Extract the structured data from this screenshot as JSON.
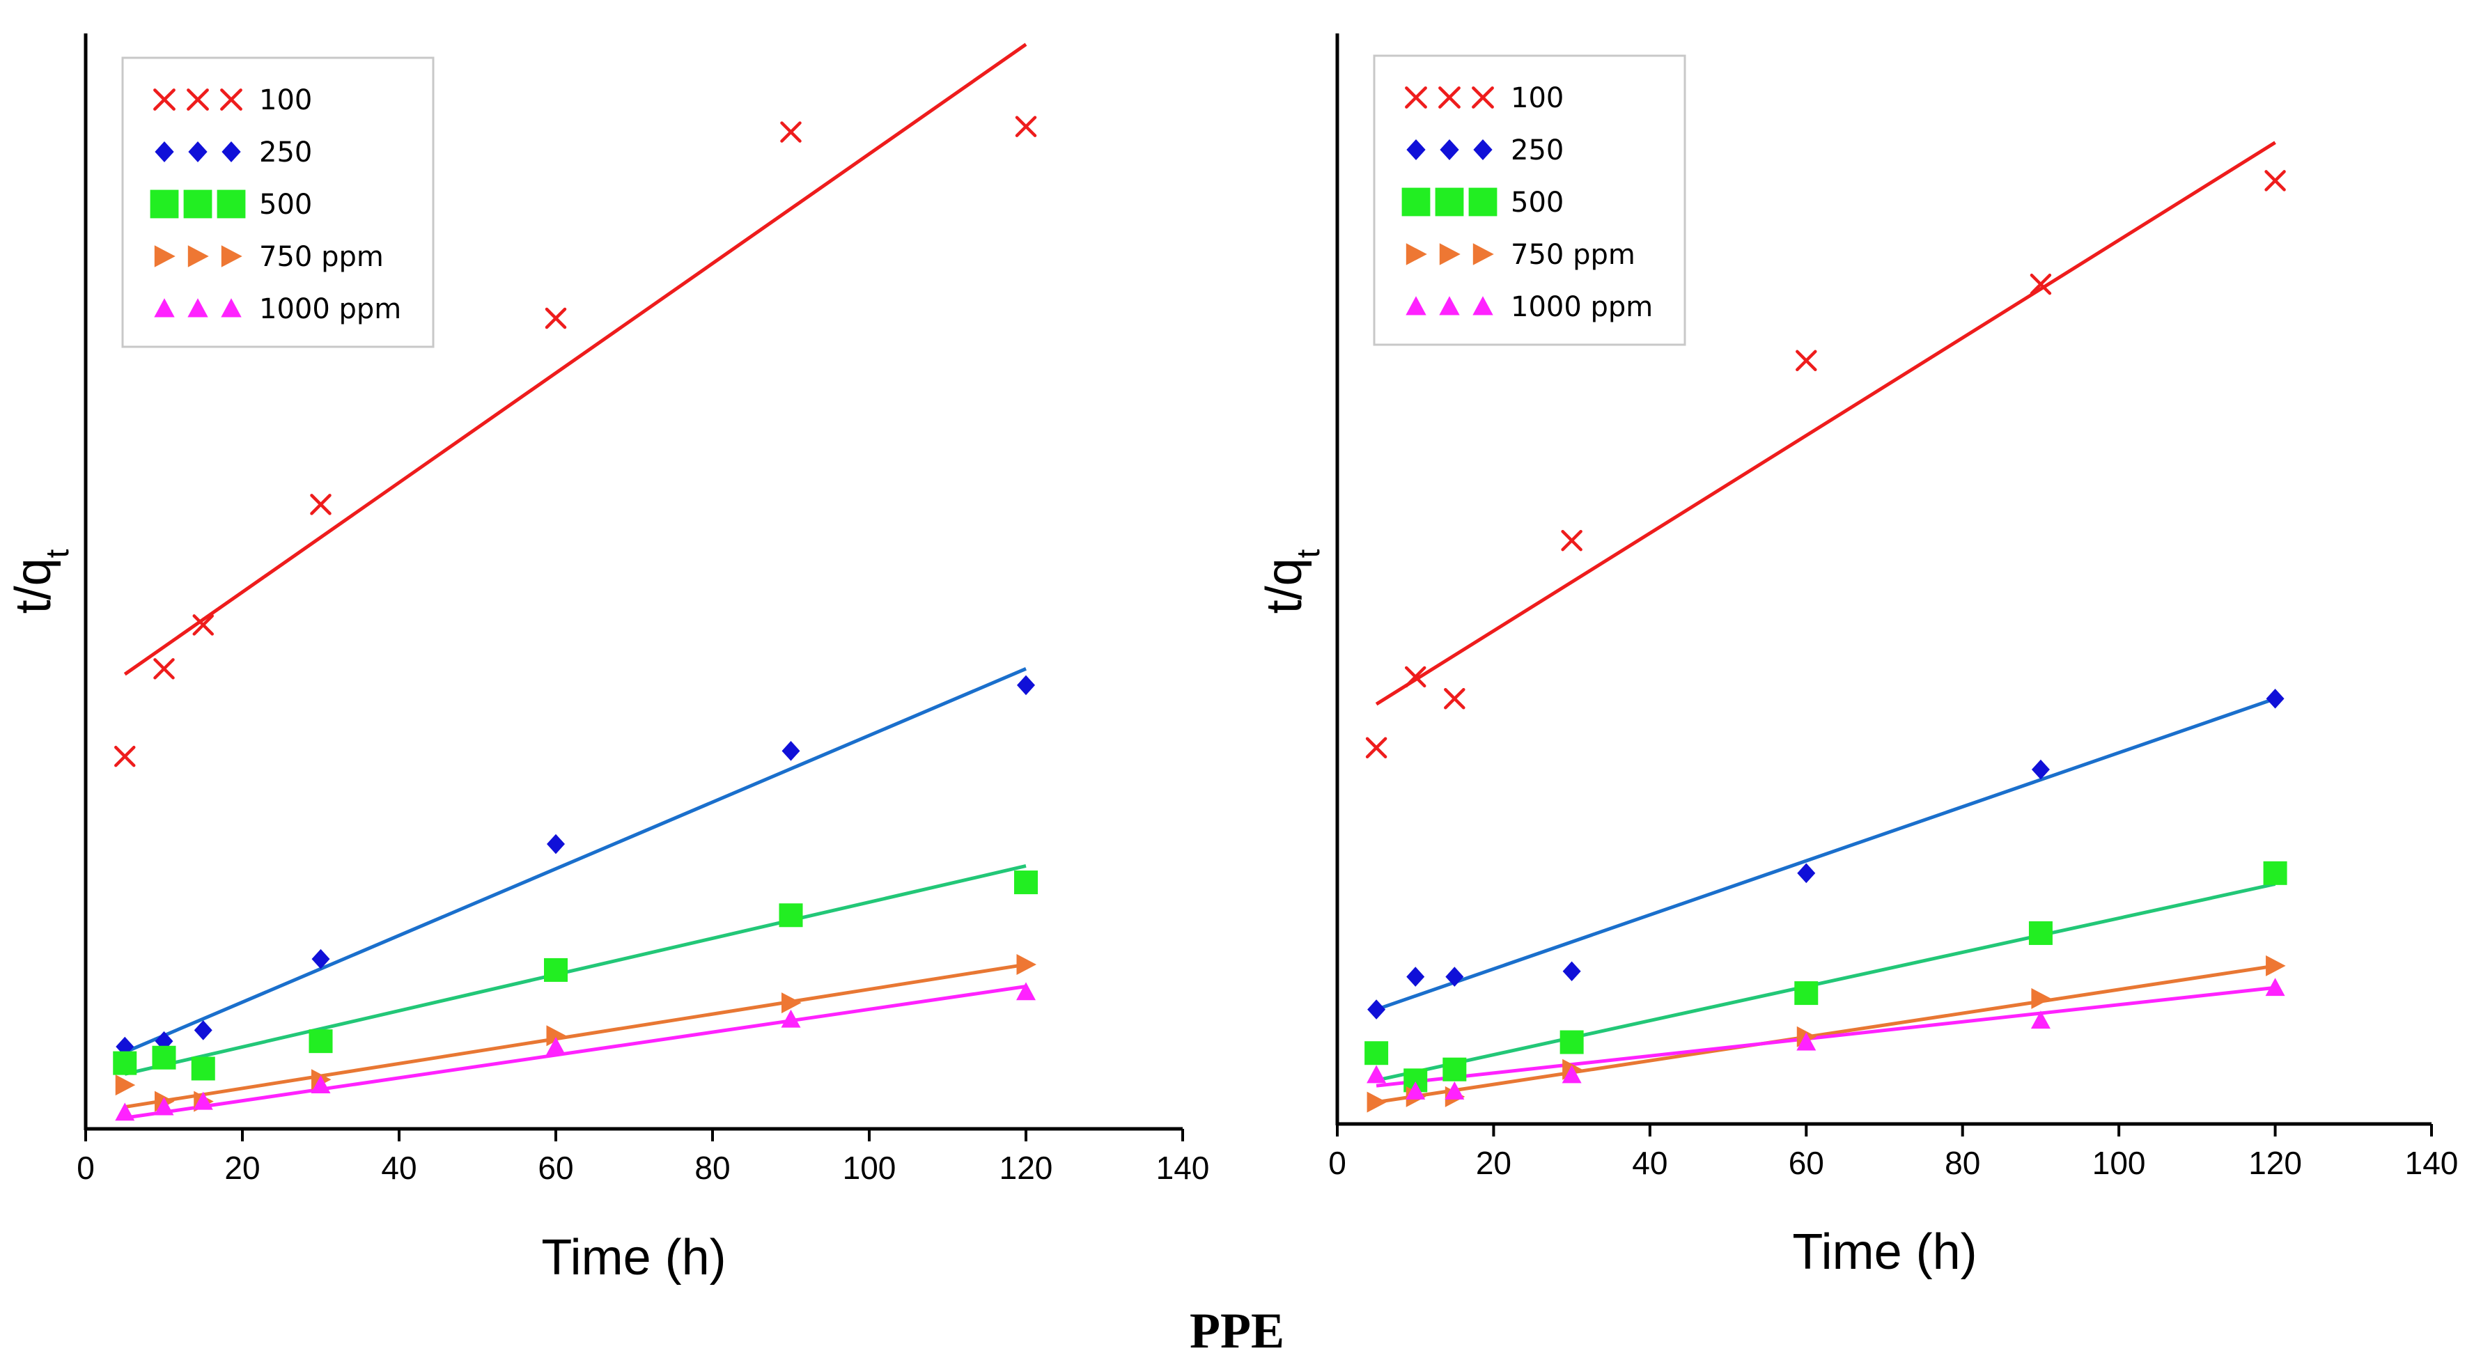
{
  "caption": "PPE",
  "legend_labels": [
    "100",
    "250",
    "500",
    "750 ppm",
    "1000 ppm"
  ],
  "chart_data": [
    {
      "type": "scatter",
      "title": "",
      "xlabel": "Time (h)",
      "ylabel_main": "t/q",
      "ylabel_sub": "t",
      "xlim": [
        0,
        140
      ],
      "xticks": [
        "0",
        "20",
        "40",
        "60",
        "80",
        "100",
        "120",
        "140"
      ],
      "ylim": [
        0,
        100
      ],
      "yticks": [],
      "grid": false,
      "legend_position": "top-left",
      "x": [
        5,
        10,
        15,
        30,
        60,
        90,
        120
      ],
      "series": [
        {
          "name": "100",
          "marker": "x",
          "color": "#ee1c1c",
          "line_color": "#ee1c1c",
          "values": [
            34,
            42,
            46,
            57,
            74,
            91,
            91.5
          ],
          "fit": [
            [
              5,
              41.5
            ],
            [
              120,
              99
            ]
          ]
        },
        {
          "name": "250",
          "marker": "diamond",
          "color": "#1010d8",
          "line_color": "#1a6fcc",
          "values": [
            7.5,
            8,
            9,
            15.5,
            26,
            34.5,
            40.5
          ],
          "fit": [
            [
              5,
              7
            ],
            [
              120,
              42
            ]
          ]
        },
        {
          "name": "500",
          "marker": "square",
          "color": "#22ee22",
          "line_color": "#22c777",
          "values": [
            6,
            6.5,
            5.5,
            8,
            14.5,
            19.5,
            22.5
          ],
          "fit": [
            [
              5,
              5
            ],
            [
              120,
              24
            ]
          ]
        },
        {
          "name": "750 ppm",
          "marker": "triangle-right",
          "color": "#ee7733",
          "line_color": "#e87733",
          "values": [
            4,
            2.5,
            2.5,
            4.5,
            8.5,
            11.5,
            15
          ],
          "fit": [
            [
              5,
              2
            ],
            [
              120,
              15
            ]
          ]
        },
        {
          "name": "1000 ppm",
          "marker": "triangle-up",
          "color": "#ff22ff",
          "line_color": "#ff22ff",
          "values": [
            1.5,
            2,
            2.5,
            4,
            7.5,
            10,
            12.5
          ],
          "fit": [
            [
              5,
              1
            ],
            [
              120,
              13
            ]
          ]
        }
      ]
    },
    {
      "type": "scatter",
      "title": "",
      "xlabel": "Time (h)",
      "ylabel_main": "t/q",
      "ylabel_sub": "t",
      "xlim": [
        0,
        140
      ],
      "xticks": [
        "0",
        "20",
        "40",
        "60",
        "80",
        "100",
        "120",
        "140"
      ],
      "ylim": [
        0,
        100
      ],
      "yticks": [],
      "grid": false,
      "legend_position": "top-left",
      "x": [
        5,
        10,
        15,
        30,
        60,
        90,
        120
      ],
      "series": [
        {
          "name": "100",
          "marker": "x",
          "color": "#ee1c1c",
          "line_color": "#ee1c1c",
          "values": [
            34.5,
            41,
            39,
            53.5,
            70,
            77,
            86.5
          ],
          "fit": [
            [
              5,
              38.5
            ],
            [
              120,
              90
            ]
          ]
        },
        {
          "name": "250",
          "marker": "diamond",
          "color": "#1010d8",
          "line_color": "#1a6fcc",
          "values": [
            10.5,
            13.5,
            13.5,
            14,
            23,
            32.5,
            39
          ],
          "fit": [
            [
              5,
              10.5
            ],
            [
              120,
              39
            ]
          ]
        },
        {
          "name": "500",
          "marker": "square",
          "color": "#22ee22",
          "line_color": "#22c777",
          "values": [
            6.5,
            4,
            5,
            7.5,
            12,
            17.5,
            23
          ],
          "fit": [
            [
              5,
              4
            ],
            [
              120,
              22
            ]
          ]
        },
        {
          "name": "750 ppm",
          "marker": "triangle-right",
          "color": "#ee7733",
          "line_color": "#e87733",
          "values": [
            2,
            2.5,
            2.5,
            5,
            8,
            11.5,
            14.5
          ],
          "fit": [
            [
              5,
              2
            ],
            [
              120,
              14.5
            ]
          ]
        },
        {
          "name": "1000 ppm",
          "marker": "triangle-up",
          "color": "#ff22ff",
          "line_color": "#ff22ff",
          "values": [
            4.5,
            3,
            3,
            4.5,
            7.5,
            9.5,
            12.5
          ],
          "fit": [
            [
              5,
              3.5
            ],
            [
              120,
              12.5
            ]
          ]
        }
      ]
    }
  ]
}
